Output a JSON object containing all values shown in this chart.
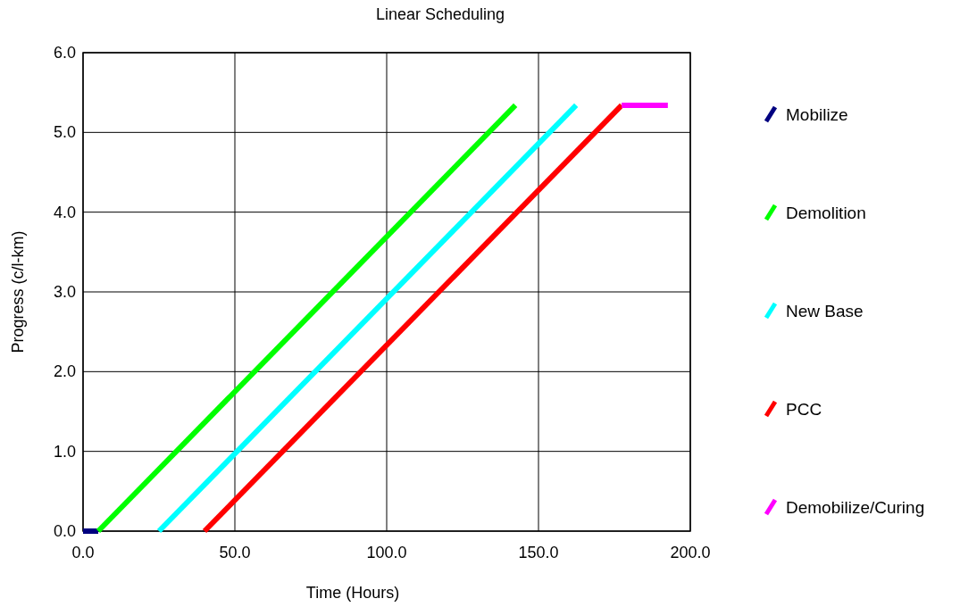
{
  "chart_data": {
    "type": "line",
    "title": "Linear Scheduling",
    "xlabel": "Time (Hours)",
    "ylabel": "Progress (c/l-km)",
    "xlim": [
      0,
      200
    ],
    "ylim": [
      0,
      6
    ],
    "xticks": [
      {
        "value": 0,
        "label": "0.0"
      },
      {
        "value": 50,
        "label": "50.0"
      },
      {
        "value": 100,
        "label": "100.0"
      },
      {
        "value": 150,
        "label": "150.0"
      },
      {
        "value": 200,
        "label": "200.0"
      }
    ],
    "yticks": [
      {
        "value": 0,
        "label": "0.0"
      },
      {
        "value": 1,
        "label": "1.0"
      },
      {
        "value": 2,
        "label": "2.0"
      },
      {
        "value": 3,
        "label": "3.0"
      },
      {
        "value": 4,
        "label": "4.0"
      },
      {
        "value": 5,
        "label": "5.0"
      },
      {
        "value": 6,
        "label": "6.0"
      }
    ],
    "grid": true,
    "legend": "right",
    "marker": "none",
    "line_style": "solid",
    "series": [
      {
        "name": "Mobilize",
        "color": "#000080",
        "x": [
          0,
          5
        ],
        "values": [
          0,
          0
        ]
      },
      {
        "name": "Demolition",
        "color": "#00ff00",
        "x": [
          5,
          142.4
        ],
        "values": [
          0,
          5.34
        ]
      },
      {
        "name": "New Base",
        "color": "#00ffff",
        "x": [
          25,
          162.4
        ],
        "values": [
          0,
          5.34
        ]
      },
      {
        "name": "PCC",
        "color": "#ff0000",
        "x": [
          40,
          177.4
        ],
        "values": [
          0,
          5.34
        ]
      },
      {
        "name": "Demobilize/Curing",
        "color": "#ff00ff",
        "x": [
          177.4,
          192.6
        ],
        "values": [
          5.34,
          5.34
        ]
      }
    ]
  }
}
